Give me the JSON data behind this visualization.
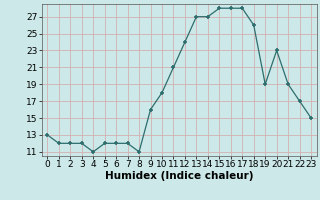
{
  "x": [
    0,
    1,
    2,
    3,
    4,
    5,
    6,
    7,
    8,
    9,
    10,
    11,
    12,
    13,
    14,
    15,
    16,
    17,
    18,
    19,
    20,
    21,
    22,
    23
  ],
  "y": [
    13,
    12,
    12,
    12,
    11,
    12,
    12,
    12,
    11,
    16,
    18,
    21,
    24,
    27,
    27,
    28,
    28,
    28,
    26,
    19,
    23,
    19,
    17,
    15
  ],
  "xlabel": "Humidex (Indice chaleur)",
  "line_color": "#2e6e6e",
  "marker_color": "#2e6e6e",
  "bg_color": "#cce8e8",
  "grid_color": "#c0d8d8",
  "ylim": [
    10.5,
    28.5
  ],
  "xlim": [
    -0.5,
    23.5
  ],
  "yticks": [
    11,
    13,
    15,
    17,
    19,
    21,
    23,
    25,
    27
  ],
  "xticks": [
    0,
    1,
    2,
    3,
    4,
    5,
    6,
    7,
    8,
    9,
    10,
    11,
    12,
    13,
    14,
    15,
    16,
    17,
    18,
    19,
    20,
    21,
    22,
    23
  ],
  "xlabel_fontsize": 7.5,
  "tick_fontsize": 6.5
}
